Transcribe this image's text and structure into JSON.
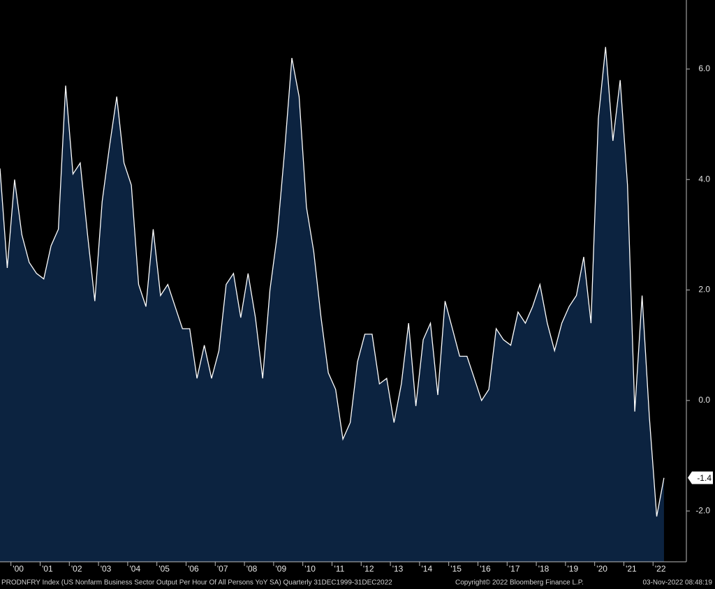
{
  "chart_data": {
    "type": "area",
    "categories": [
      null,
      null,
      "'00",
      null,
      null,
      null,
      "'01",
      null,
      null,
      null,
      "'02",
      null,
      null,
      null,
      "'03",
      null,
      null,
      null,
      "'04",
      null,
      null,
      null,
      "'05",
      null,
      null,
      null,
      "'06",
      null,
      null,
      null,
      "'07",
      null,
      null,
      null,
      "'08",
      null,
      null,
      null,
      "'09",
      null,
      null,
      null,
      "'10",
      null,
      null,
      null,
      "'11",
      null,
      null,
      null,
      "'12",
      null,
      null,
      null,
      "'13",
      null,
      null,
      null,
      "'14",
      null,
      null,
      null,
      "'15",
      null,
      null,
      null,
      "'16",
      null,
      null,
      null,
      "'17",
      null,
      null,
      null,
      "'18",
      null,
      null,
      null,
      "'19",
      null,
      null,
      null,
      "'20",
      null,
      null,
      null,
      "'21",
      null,
      null,
      null,
      "'22",
      null
    ],
    "series": [
      {
        "name": "PRODNFRY Index",
        "color": "#0c2340",
        "line_color": "#ffffff",
        "values": [
          4.2,
          2.4,
          4.0,
          3.0,
          2.5,
          2.3,
          2.2,
          2.8,
          3.1,
          5.7,
          4.1,
          4.3,
          3.0,
          1.8,
          3.6,
          4.6,
          5.5,
          4.3,
          3.9,
          2.1,
          1.7,
          3.1,
          1.9,
          2.1,
          1.7,
          1.3,
          1.3,
          0.4,
          1.0,
          0.4,
          0.9,
          2.1,
          2.3,
          1.5,
          2.3,
          1.5,
          0.4,
          2.0,
          3.0,
          4.5,
          6.2,
          5.5,
          3.5,
          2.7,
          1.5,
          0.5,
          0.2,
          -0.7,
          -0.4,
          0.7,
          1.2,
          1.2,
          0.3,
          0.4,
          -0.4,
          0.3,
          1.4,
          -0.1,
          1.1,
          1.4,
          0.1,
          1.8,
          1.3,
          0.8,
          0.8,
          0.4,
          0.0,
          0.2,
          1.3,
          1.1,
          1.0,
          1.6,
          1.4,
          1.7,
          2.1,
          1.4,
          0.9,
          1.4,
          1.7,
          1.9,
          2.6,
          1.4,
          5.1,
          6.4,
          4.7,
          5.8,
          3.9,
          -0.2,
          1.9,
          -0.3,
          -2.1,
          -1.4
        ]
      }
    ],
    "ylim": [
      -2.92,
      7.25
    ],
    "yticks": [
      {
        "value": -2,
        "label": "-2.0"
      },
      {
        "value": 0,
        "label": "0.0"
      },
      {
        "value": 2,
        "label": "2.0"
      },
      {
        "value": 4,
        "label": "4.0"
      },
      {
        "value": 6,
        "label": "6.0"
      }
    ],
    "footer": {
      "description": "PRODNFRY Index (US Nonfarm Business Sector Output Per Hour Of All Persons YoY SA)  Quarterly 31DEC1999-31DEC2022",
      "copyright": "Copyright© 2022 Bloomberg Finance L.P.",
      "timestamp": "03-Nov-2022 08:48:19"
    }
  }
}
